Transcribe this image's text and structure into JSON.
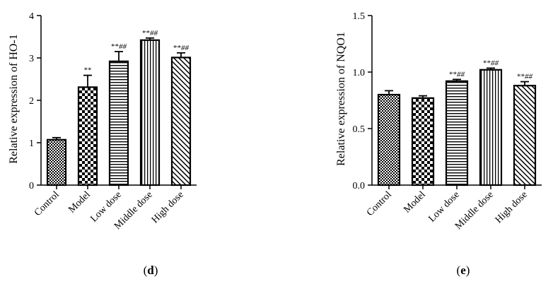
{
  "chart_data": [
    {
      "type": "bar",
      "panel_label": "d",
      "ylabel": "Relative expression of HO-1",
      "xlabel": "",
      "categories": [
        "Control",
        "Model",
        "Low dose",
        "Middle dose",
        "High dose"
      ],
      "values": [
        1.07,
        2.31,
        2.92,
        3.42,
        3.01
      ],
      "errors": [
        0.05,
        0.28,
        0.23,
        0.05,
        0.11
      ],
      "annotations": [
        {
          "stars": "",
          "hash": ""
        },
        {
          "stars": "**",
          "hash": ""
        },
        {
          "stars": "**",
          "hash": "##"
        },
        {
          "stars": "**",
          "hash": "##"
        },
        {
          "stars": "**",
          "hash": "##"
        }
      ],
      "patterns": [
        "checker-fine",
        "checker-coarse",
        "horizontal-lines",
        "vertical-lines",
        "diagonal-lines"
      ],
      "ylim": [
        0,
        4
      ],
      "yticks": [
        0,
        1,
        2,
        3,
        4
      ],
      "ytick_labels": [
        "0",
        "1",
        "2",
        "3",
        "4"
      ],
      "grid": false
    },
    {
      "type": "bar",
      "panel_label": "e",
      "ylabel": "Relative expression of NQO1",
      "xlabel": "",
      "categories": [
        "Control",
        "Model",
        "Low dose",
        "Middle dose",
        "High dose"
      ],
      "values": [
        0.8,
        0.77,
        0.92,
        1.02,
        0.88
      ],
      "errors": [
        0.035,
        0.02,
        0.015,
        0.015,
        0.035
      ],
      "annotations": [
        {
          "stars": "",
          "hash": ""
        },
        {
          "stars": "",
          "hash": ""
        },
        {
          "stars": "**",
          "hash": "##"
        },
        {
          "stars": "**",
          "hash": "##"
        },
        {
          "stars": "**",
          "hash": "##"
        }
      ],
      "patterns": [
        "checker-fine",
        "checker-coarse",
        "horizontal-lines",
        "vertical-lines",
        "diagonal-lines"
      ],
      "ylim": [
        0,
        1.5
      ],
      "yticks": [
        0,
        0.5,
        1.0,
        1.5
      ],
      "ytick_labels": [
        "0.0",
        "0.5",
        "1.0",
        "1.5"
      ],
      "grid": false
    }
  ]
}
